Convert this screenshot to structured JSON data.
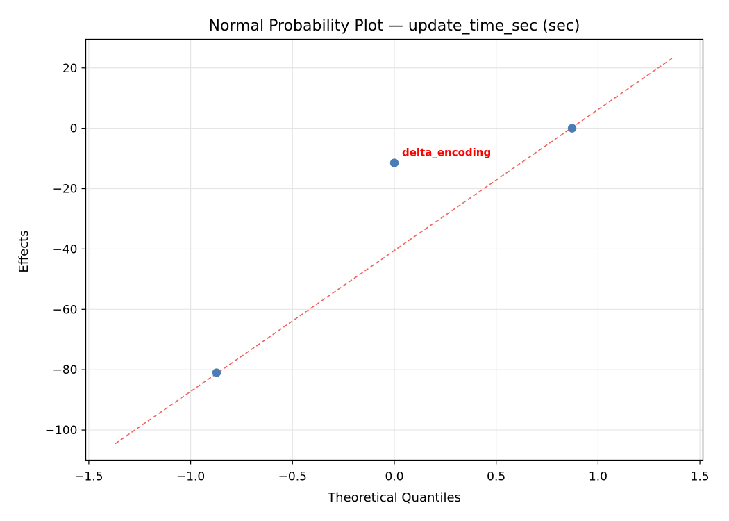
{
  "chart_data": {
    "type": "scatter",
    "title": "Normal Probability Plot — update_time_sec (sec)",
    "xlabel": "Theoretical Quantiles",
    "ylabel": "Effects",
    "xlim": [
      -1.515,
      1.515
    ],
    "ylim": [
      -110,
      29.5
    ],
    "xticks": [
      -1.5,
      -1.0,
      -0.5,
      0.0,
      0.5,
      1.0,
      1.5
    ],
    "xtick_labels": [
      "−1.5",
      "−1.0",
      "−0.5",
      "0.0",
      "0.5",
      "1.0",
      "1.5"
    ],
    "yticks": [
      20,
      0,
      -20,
      -40,
      -60,
      -80,
      -100
    ],
    "ytick_labels": [
      "20",
      "0",
      "−20",
      "−40",
      "−60",
      "−80",
      "−100"
    ],
    "grid": true,
    "points": [
      {
        "x": -0.8727,
        "y": -81.0
      },
      {
        "x": 0.0,
        "y": -11.5
      },
      {
        "x": 0.8727,
        "y": 0.0
      }
    ],
    "reference_line": {
      "x": [
        -1.37,
        1.37
      ],
      "y": [
        -104.5,
        23.5
      ],
      "style": "dashed"
    },
    "annotations": [
      {
        "text": "delta_encoding",
        "x": 0.0,
        "y": -11.5
      }
    ],
    "colors": {
      "points": "#4a7db5",
      "line": "#f2625c",
      "annotation": "#ff0000",
      "grid": "#e5e5e5"
    }
  }
}
